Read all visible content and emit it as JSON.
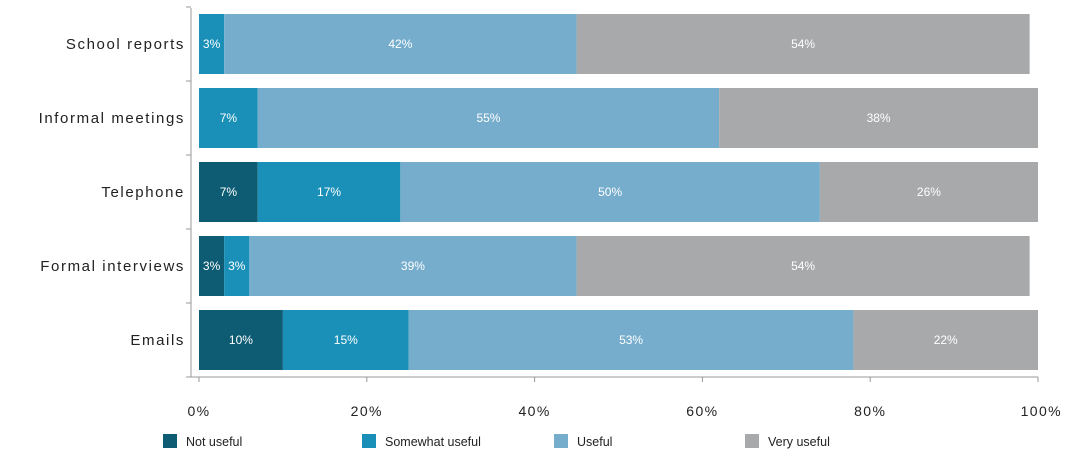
{
  "chart_data": {
    "type": "bar",
    "orientation": "horizontal",
    "stacked": true,
    "categories": [
      "School reports",
      "Informal meetings",
      "Telephone",
      "Formal interviews",
      "Emails"
    ],
    "series": [
      {
        "name": "Not useful",
        "color": "#0e5c73",
        "values": [
          0,
          0,
          7,
          3,
          10
        ],
        "labels": [
          "",
          "",
          "7%",
          "3%",
          "10%"
        ]
      },
      {
        "name": "Somewhat useful",
        "color": "#1a90b8",
        "values": [
          3,
          7,
          17,
          3,
          15
        ],
        "labels": [
          "3%",
          "7%",
          "17%",
          "3%",
          "15%"
        ]
      },
      {
        "name": "Useful",
        "color": "#76adcd",
        "values": [
          42,
          55,
          50,
          39,
          53
        ],
        "labels": [
          "42%",
          "55%",
          "50%",
          "39%",
          "53%"
        ]
      },
      {
        "name": "Very useful",
        "color": "#a8a9ab",
        "values": [
          54,
          38,
          26,
          54,
          22
        ],
        "labels": [
          "54%",
          "38%",
          "26%",
          "54%",
          "22%"
        ]
      }
    ],
    "xlim": [
      0,
      100
    ],
    "x_ticks": [
      "0%",
      "20%",
      "40%",
      "60%",
      "80%",
      "100%"
    ],
    "grid": false,
    "legend_position": "bottom"
  }
}
